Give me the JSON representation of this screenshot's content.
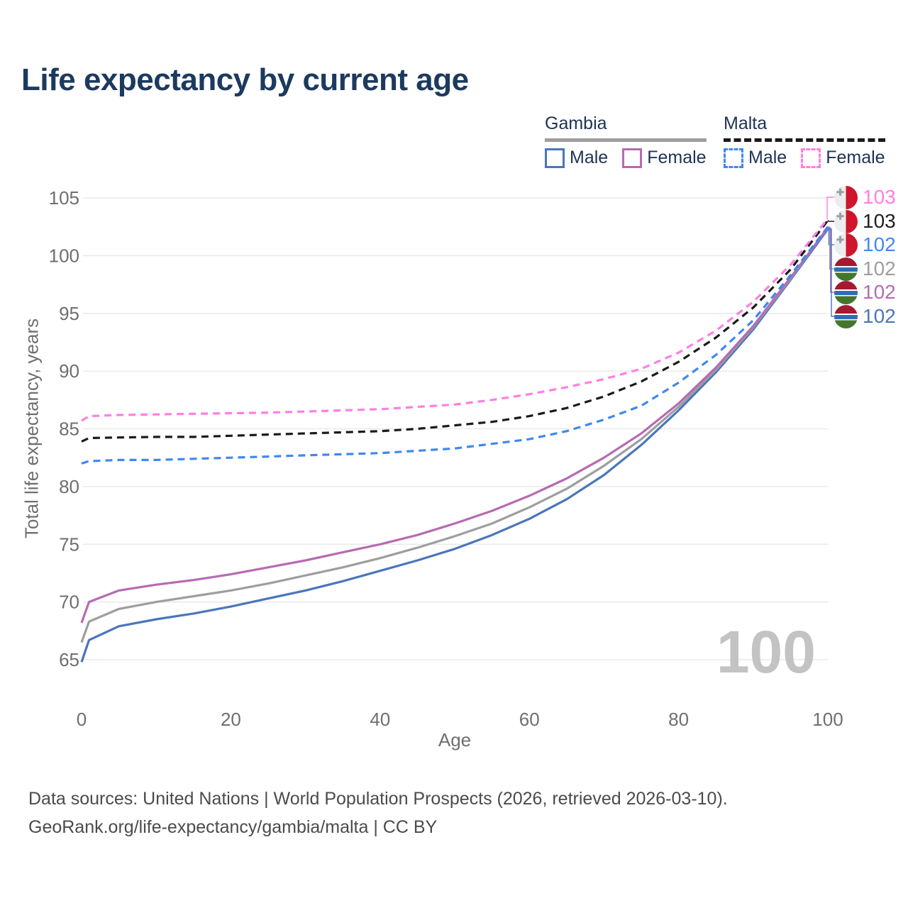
{
  "title": "Life expectancy by current age",
  "legend": {
    "groups": [
      {
        "label": "Gambia",
        "underline_style": "solid",
        "underline_color": "#9e9e9e",
        "items": [
          {
            "label": "Male",
            "swatch_color": "#4a76bb",
            "swatch_style": "solid"
          },
          {
            "label": "Female",
            "swatch_color": "#b66bb2",
            "swatch_style": "solid"
          }
        ]
      },
      {
        "label": "Malta",
        "underline_style": "dashed",
        "underline_color": "#1a1a1a",
        "items": [
          {
            "label": "Male",
            "swatch_color": "#3f88ef",
            "swatch_style": "dashed"
          },
          {
            "label": "Female",
            "swatch_color": "#ff7ee3",
            "swatch_style": "dashed"
          }
        ]
      }
    ]
  },
  "chart_data": {
    "type": "line",
    "title": "Life expectancy by current age",
    "xlabel": "Age",
    "ylabel": "Total life expectancy, years",
    "xlim": [
      0,
      100
    ],
    "ylim": [
      65,
      105
    ],
    "x_ticks": [
      0,
      20,
      40,
      60,
      80,
      100
    ],
    "y_ticks": [
      65,
      70,
      75,
      80,
      85,
      90,
      95,
      100,
      105
    ],
    "grid": "horizontal-only",
    "legend_position": "top-right",
    "current_age_indicator": "100",
    "ages": [
      0,
      1,
      5,
      10,
      15,
      20,
      25,
      30,
      35,
      40,
      45,
      50,
      55,
      60,
      65,
      70,
      75,
      80,
      85,
      90,
      95,
      100
    ],
    "series": [
      {
        "name": "Gambia Male",
        "country": "Gambia",
        "sex": "Male",
        "line_style": "solid",
        "color": "#4a76bb",
        "values": [
          64.8,
          66.7,
          67.9,
          68.5,
          69.0,
          69.6,
          70.3,
          71.0,
          71.8,
          72.7,
          73.6,
          74.6,
          75.8,
          77.2,
          78.9,
          81.0,
          83.6,
          86.6,
          89.9,
          93.6,
          97.9,
          102.3
        ]
      },
      {
        "name": "Gambia",
        "country": "Gambia",
        "sex": "Both",
        "line_style": "solid",
        "color": "#9e9e9e",
        "values": [
          66.5,
          68.3,
          69.4,
          70.0,
          70.5,
          71.0,
          71.6,
          72.3,
          73.0,
          73.8,
          74.7,
          75.7,
          76.8,
          78.2,
          79.8,
          81.8,
          84.1,
          86.9,
          90.1,
          93.8,
          98.0,
          102.45
        ]
      },
      {
        "name": "Gambia Female",
        "country": "Gambia",
        "sex": "Female",
        "line_style": "solid",
        "color": "#b66bb2",
        "values": [
          68.2,
          70.0,
          71.0,
          71.5,
          71.9,
          72.4,
          73.0,
          73.6,
          74.3,
          75.0,
          75.8,
          76.8,
          77.9,
          79.2,
          80.7,
          82.5,
          84.6,
          87.2,
          90.3,
          93.9,
          98.1,
          102.4
        ]
      },
      {
        "name": "Malta Male",
        "country": "Malta",
        "sex": "Male",
        "line_style": "dashed",
        "color": "#3f88ef",
        "values": [
          82.0,
          82.2,
          82.3,
          82.3,
          82.4,
          82.5,
          82.6,
          82.7,
          82.8,
          82.9,
          83.1,
          83.3,
          83.7,
          84.1,
          84.8,
          85.8,
          87.0,
          89.0,
          91.4,
          94.4,
          98.3,
          102.5
        ]
      },
      {
        "name": "Malta",
        "country": "Malta",
        "sex": "Both",
        "line_style": "dashed",
        "color": "#1a1a1a",
        "values": [
          83.9,
          84.2,
          84.25,
          84.3,
          84.3,
          84.4,
          84.5,
          84.6,
          84.7,
          84.8,
          85.0,
          85.3,
          85.6,
          86.1,
          86.8,
          87.8,
          89.1,
          90.8,
          92.9,
          95.5,
          98.8,
          103.05
        ]
      },
      {
        "name": "Malta Female",
        "country": "Malta",
        "sex": "Female",
        "line_style": "dashed",
        "color": "#ff7ee3",
        "values": [
          85.7,
          86.1,
          86.2,
          86.25,
          86.3,
          86.35,
          86.4,
          86.5,
          86.6,
          86.7,
          86.9,
          87.1,
          87.5,
          88.0,
          88.6,
          89.3,
          90.2,
          91.6,
          93.5,
          96.0,
          99.2,
          103.2
        ]
      }
    ]
  },
  "side_labels": [
    {
      "series": "Malta Female",
      "flag": "malta",
      "value": "103",
      "color": "#ff7ee3"
    },
    {
      "series": "Malta",
      "flag": "malta",
      "value": "103",
      "color": "#1f1f1f"
    },
    {
      "series": "Malta Male",
      "flag": "malta",
      "value": "102",
      "color": "#3f88ef"
    },
    {
      "series": "Gambia",
      "flag": "gambia",
      "value": "102",
      "color": "#9e9e9e"
    },
    {
      "series": "Gambia Female",
      "flag": "gambia",
      "value": "102",
      "color": "#b66bb2"
    },
    {
      "series": "Gambia Male",
      "flag": "gambia",
      "value": "102",
      "color": "#4a76bb"
    }
  ],
  "flags": {
    "malta": {
      "left": "#ededed",
      "right": "#cf142b",
      "cross_glyph": "✚",
      "cross_color": "#9aa0a6"
    },
    "gambia": {
      "red": "#a6192e",
      "white": "#ffffff",
      "blue": "#2f6db6",
      "green": "#44762e"
    }
  },
  "watermark": {
    "text": "100",
    "color": "#c3c3c3"
  },
  "footer": {
    "line1": "Data sources: United Nations | World Population Prospects (2026, retrieved 2026-03-10).",
    "line2": "GeoRank.org/life-expectancy/gambia/malta | CC BY"
  },
  "colors": {
    "title": "#1c3a5e",
    "axis_text": "#6f6f6f",
    "gridline": "#e9e9e9",
    "legend_text": "#1d3354",
    "footer_text": "#4b4b4b"
  }
}
